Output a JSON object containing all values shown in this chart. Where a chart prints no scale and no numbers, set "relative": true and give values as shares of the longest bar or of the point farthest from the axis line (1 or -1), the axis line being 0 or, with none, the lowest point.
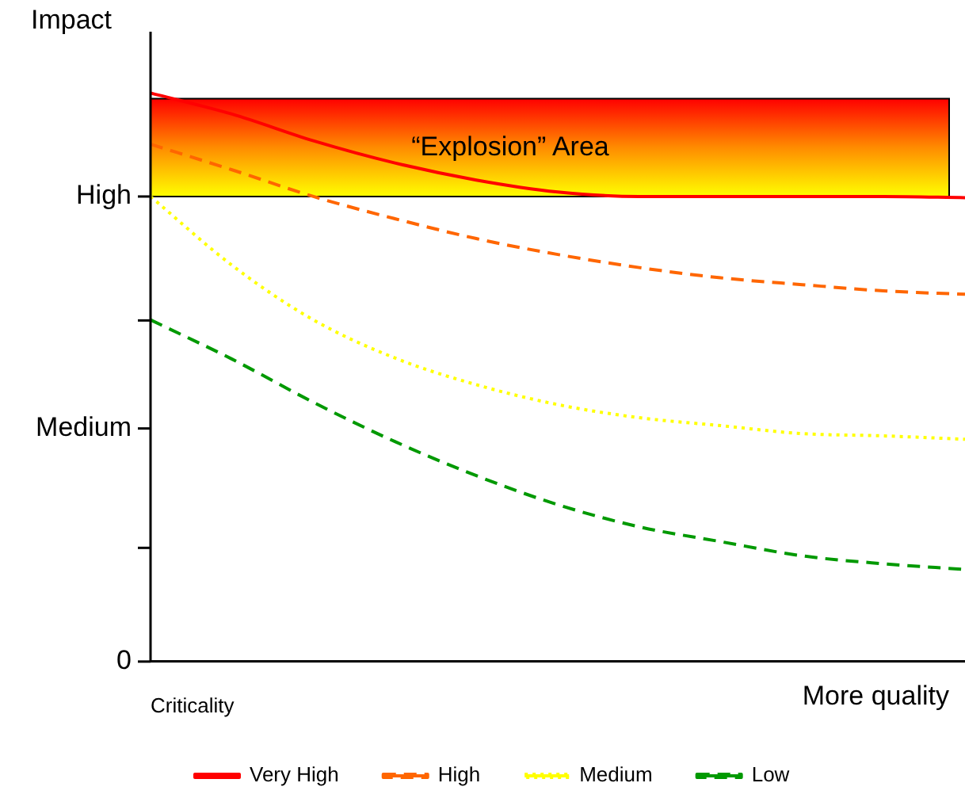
{
  "chart_data": {
    "type": "line",
    "relative": true,
    "ylabel": "Impact",
    "xlabel": "More quality",
    "legend_title": "Criticality",
    "legend": "bottom",
    "grid": false,
    "marker": "none",
    "categories": [
      null,
      null,
      null,
      null,
      null,
      null,
      null,
      null,
      null,
      null,
      null
    ],
    "annotations": [
      "High",
      "Medium",
      "0"
    ],
    "bands": [
      {
        "axis": "y",
        "from": 0.818,
        "to": 0.99,
        "label": "“Explosion” Area",
        "color": "#ff8c00"
      }
    ],
    "series": [
      {
        "name": "Very High",
        "color": "#ff0000",
        "line_style": "solid",
        "values": [
          1,
          0.963,
          0.916,
          0.877,
          0.847,
          0.826,
          0.818,
          0.818,
          0.818,
          0.818,
          0.816
        ]
      },
      {
        "name": "High",
        "color": "#ff6600",
        "line_style": "dashed",
        "values": [
          0.91,
          0.865,
          0.818,
          0.779,
          0.744,
          0.716,
          0.693,
          0.675,
          0.663,
          0.652,
          0.646
        ]
      },
      {
        "name": "Medium",
        "color": "#ffff00",
        "line_style": "dotted",
        "values": [
          0.818,
          0.697,
          0.601,
          0.534,
          0.487,
          0.452,
          0.429,
          0.415,
          0.401,
          0.397,
          0.391
        ]
      },
      {
        "name": "Low",
        "color": "#009900",
        "line_style": "dashed",
        "values": [
          0.601,
          0.532,
          0.456,
          0.387,
          0.327,
          0.276,
          0.237,
          0.211,
          0.186,
          0.172,
          0.162
        ]
      }
    ]
  }
}
